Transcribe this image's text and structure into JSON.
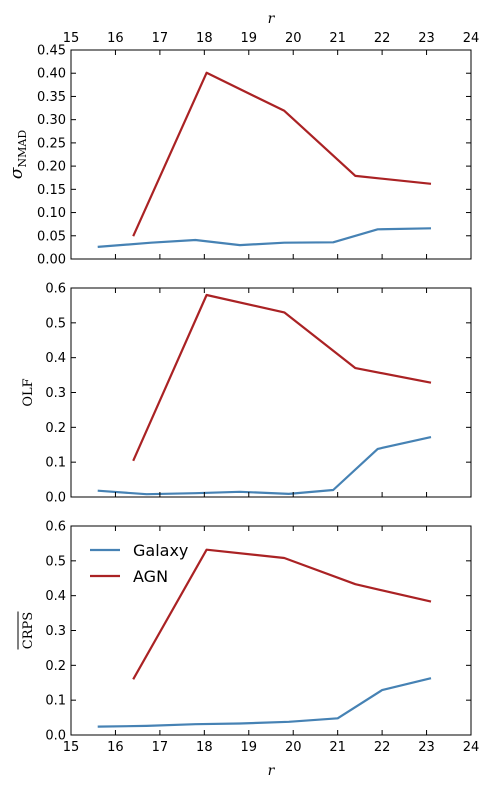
{
  "chart_data": [
    {
      "type": "line",
      "panel": "top",
      "ylabel": "σNMAD",
      "xlabel_top": "r",
      "xlim": [
        15,
        24
      ],
      "ylim": [
        0,
        0.45
      ],
      "yticks": [
        "0.00",
        "0.05",
        "0.10",
        "0.15",
        "0.20",
        "0.25",
        "0.30",
        "0.35",
        "0.40",
        "0.45"
      ],
      "xticks": [
        "15",
        "16",
        "17",
        "18",
        "19",
        "20",
        "21",
        "22",
        "23",
        "24"
      ],
      "series": [
        {
          "name": "Galaxy",
          "color": "#4682b4",
          "x": [
            15.6,
            16.8,
            17.8,
            18.8,
            19.8,
            20.9,
            21.9,
            23.1
          ],
          "y": [
            0.026,
            0.035,
            0.041,
            0.03,
            0.035,
            0.036,
            0.064,
            0.066
          ]
        },
        {
          "name": "AGN",
          "color": "#aa2224",
          "x": [
            16.4,
            18.05,
            19.8,
            21.4,
            23.1
          ],
          "y": [
            0.049,
            0.401,
            0.319,
            0.179,
            0.162
          ]
        }
      ]
    },
    {
      "type": "line",
      "panel": "middle",
      "ylabel": "OLF",
      "xlim": [
        15,
        24
      ],
      "ylim": [
        0,
        0.6
      ],
      "yticks": [
        "0.0",
        "0.1",
        "0.2",
        "0.3",
        "0.4",
        "0.5",
        "0.6"
      ],
      "series": [
        {
          "name": "Galaxy",
          "color": "#4682b4",
          "x": [
            15.6,
            16.7,
            17.8,
            18.8,
            19.9,
            20.9,
            21.9,
            23.1
          ],
          "y": [
            0.018,
            0.008,
            0.011,
            0.015,
            0.009,
            0.02,
            0.138,
            0.172
          ]
        },
        {
          "name": "AGN",
          "color": "#aa2224",
          "x": [
            16.4,
            18.05,
            19.8,
            21.4,
            23.1
          ],
          "y": [
            0.104,
            0.58,
            0.53,
            0.37,
            0.328
          ]
        }
      ]
    },
    {
      "type": "line",
      "panel": "bottom",
      "ylabel": "CRPS",
      "xlabel": "r",
      "xlim": [
        15,
        24
      ],
      "ylim": [
        0,
        0.6
      ],
      "yticks": [
        "0.0",
        "0.1",
        "0.2",
        "0.3",
        "0.4",
        "0.5",
        "0.6"
      ],
      "xticks": [
        "15",
        "16",
        "17",
        "18",
        "19",
        "20",
        "21",
        "22",
        "23",
        "24"
      ],
      "legend": {
        "placement": "top-left",
        "entries": [
          "Galaxy",
          "AGN"
        ]
      },
      "series": [
        {
          "name": "Galaxy",
          "color": "#4682b4",
          "x": [
            15.6,
            16.7,
            17.8,
            18.8,
            19.9,
            21.0,
            22.0,
            23.1
          ],
          "y": [
            0.024,
            0.026,
            0.031,
            0.033,
            0.038,
            0.048,
            0.129,
            0.163
          ]
        },
        {
          "name": "AGN",
          "color": "#aa2224",
          "x": [
            16.4,
            18.05,
            19.8,
            21.4,
            23.1
          ],
          "y": [
            0.16,
            0.532,
            0.508,
            0.433,
            0.383
          ]
        }
      ]
    }
  ]
}
